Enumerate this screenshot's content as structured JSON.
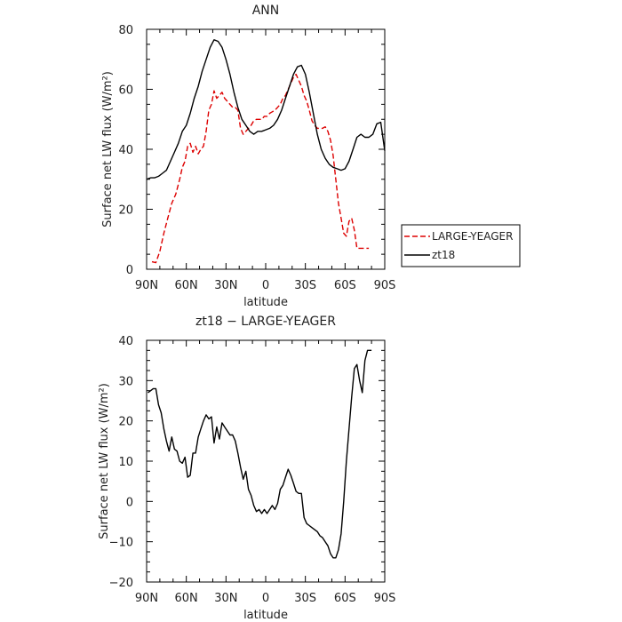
{
  "chart_data": [
    {
      "type": "line",
      "title": "ANN",
      "xlabel": "latitude",
      "ylabel": "Surface net LW flux (W/m²)",
      "xlim": [
        90,
        -90
      ],
      "ylim": [
        0,
        80
      ],
      "xticks": [
        90,
        60,
        30,
        0,
        -30,
        -60,
        -90
      ],
      "xtick_labels": [
        "90N",
        "60N",
        "30N",
        "0",
        "30S",
        "60S",
        "90S"
      ],
      "yticks": [
        0,
        20,
        40,
        60,
        80
      ],
      "ytick_labels": [
        "0",
        "20",
        "40",
        "60",
        "80"
      ],
      "legend": {
        "placement": "right",
        "entries": [
          "LARGE-YEAGER",
          "zt18"
        ]
      },
      "series": [
        {
          "name": "LARGE-YEAGER",
          "color": "#dd0000",
          "dash": "dashed",
          "x": [
            86,
            83,
            80,
            77,
            74,
            71,
            68,
            65,
            63,
            61,
            59,
            57,
            55,
            53,
            51,
            49,
            47,
            45,
            43,
            41,
            39,
            37,
            35,
            33,
            31,
            29,
            27,
            25,
            23,
            21,
            19,
            17,
            15,
            13,
            11,
            9,
            7,
            5,
            3,
            1,
            -1,
            -3,
            -5,
            -7,
            -9,
            -11,
            -13,
            -15,
            -17,
            -19,
            -21,
            -23,
            -25,
            -27,
            -29,
            -31,
            -33,
            -35,
            -37,
            -39,
            -41,
            -43,
            -45,
            -47,
            -49,
            -51,
            -53,
            -55,
            -57,
            -59,
            -61,
            -63,
            -65,
            -67,
            -69,
            -71,
            -73,
            -75,
            -77,
            -78
          ],
          "values": [
            2.5,
            2.2,
            6,
            12,
            17,
            22,
            25,
            30,
            34,
            36,
            41,
            42,
            39,
            41,
            38.5,
            40,
            41,
            46,
            53,
            55,
            59.5,
            57,
            58,
            59,
            57,
            56,
            55,
            54,
            54,
            53,
            47,
            45,
            46,
            47,
            48,
            49.5,
            50,
            50,
            50,
            51,
            51,
            52,
            52.5,
            53,
            54,
            55,
            57,
            58,
            60,
            62,
            64,
            65,
            63,
            61,
            58,
            56,
            53,
            49.5,
            48,
            47,
            47,
            47,
            47.5,
            46,
            43,
            38,
            30,
            22,
            17,
            12,
            11,
            16,
            17,
            13,
            7,
            7,
            7,
            7,
            7,
            7
          ]
        },
        {
          "name": "zt18",
          "color": "#000000",
          "dash": "solid",
          "x": [
            90,
            87,
            84,
            81,
            78,
            75,
            72,
            69,
            66,
            63,
            60,
            57,
            54,
            51,
            48,
            45,
            42,
            39,
            36,
            33,
            30,
            27,
            24,
            21,
            18,
            15,
            12,
            9,
            6,
            3,
            0,
            -3,
            -6,
            -9,
            -12,
            -15,
            -18,
            -21,
            -24,
            -27,
            -30,
            -33,
            -36,
            -39,
            -42,
            -45,
            -48,
            -51,
            -54,
            -57,
            -60,
            -63,
            -66,
            -69,
            -72,
            -75,
            -78,
            -81,
            -84,
            -87,
            -90
          ],
          "values": [
            30,
            30.5,
            30.5,
            31,
            32,
            33,
            36,
            39,
            42,
            46,
            48,
            52,
            57,
            61,
            66,
            70,
            74,
            76.5,
            76,
            74,
            70,
            65,
            59,
            54,
            50,
            48,
            46,
            45,
            46,
            46,
            46.5,
            47,
            48,
            50,
            53,
            57,
            61,
            65,
            67.5,
            68,
            65,
            59,
            52,
            45,
            40,
            37,
            35,
            34,
            33.5,
            33,
            33.5,
            36,
            40,
            44,
            45,
            44,
            44,
            45,
            48.5,
            49,
            39.5
          ]
        }
      ]
    },
    {
      "type": "line",
      "title": "zt18 − LARGE-YEAGER",
      "xlabel": "latitude",
      "ylabel": "Surface net LW flux (W/m²)",
      "xlim": [
        90,
        -90
      ],
      "ylim": [
        -20,
        40
      ],
      "xticks": [
        90,
        60,
        30,
        0,
        -30,
        -60,
        -90
      ],
      "xtick_labels": [
        "90N",
        "60N",
        "30N",
        "0",
        "30S",
        "60S",
        "90S"
      ],
      "yticks": [
        -20,
        -10,
        0,
        10,
        20,
        30,
        40
      ],
      "ytick_labels": [
        "−20",
        "−10",
        "0",
        "10",
        "20",
        "30",
        "40"
      ],
      "series": [
        {
          "color": "#000000",
          "dash": "solid",
          "x": [
            89,
            87,
            85,
            83,
            81,
            79,
            77,
            75,
            73,
            71,
            69,
            67,
            65,
            63,
            61,
            59,
            57,
            55,
            53,
            51,
            49,
            47,
            45,
            43,
            41,
            39,
            37,
            35,
            33,
            31,
            29,
            27,
            25,
            23,
            21,
            19,
            17,
            15,
            13,
            11,
            9,
            7,
            5,
            3,
            1,
            -1,
            -3,
            -5,
            -7,
            -9,
            -11,
            -13,
            -15,
            -17,
            -19,
            -21,
            -23,
            -25,
            -27,
            -29,
            -31,
            -33,
            -35,
            -37,
            -39,
            -41,
            -43,
            -45,
            -47,
            -49,
            -51,
            -53,
            -55,
            -57,
            -59,
            -61,
            -63,
            -65,
            -67,
            -69,
            -71,
            -73,
            -75,
            -77,
            -79,
            -80
          ],
          "values": [
            27,
            27.5,
            28,
            28,
            24,
            22,
            18,
            15,
            12.5,
            16,
            13,
            12.5,
            10,
            9.5,
            11,
            6,
            6.5,
            12,
            12,
            16,
            18,
            20,
            21.5,
            20.5,
            21,
            14.5,
            18.5,
            15.5,
            19.5,
            18.5,
            17.5,
            16.5,
            16.5,
            15,
            12,
            8.5,
            5.5,
            7.5,
            3,
            1.5,
            -1,
            -2.5,
            -2,
            -3,
            -2,
            -3,
            -2,
            -1,
            -2,
            -0.5,
            3,
            4,
            6,
            8,
            6.5,
            4.5,
            2.5,
            2,
            2,
            -4,
            -5.5,
            -6,
            -6.5,
            -7,
            -7.5,
            -8.5,
            -9,
            -10,
            -11,
            -13,
            -14,
            -14,
            -12,
            -8,
            0,
            10,
            18,
            26,
            33,
            34,
            30,
            27,
            35,
            37.5,
            37.5,
            37.5
          ]
        }
      ]
    }
  ]
}
